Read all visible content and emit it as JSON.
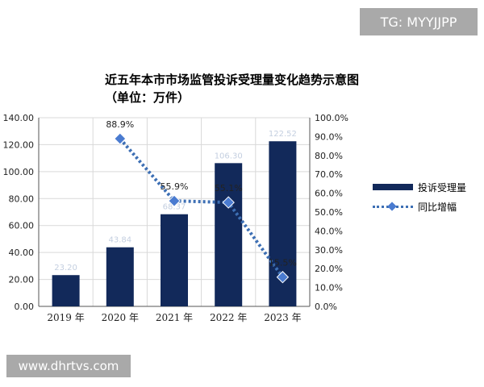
{
  "badge": "TG: MYYJJPP",
  "watermark": "www.dhrtvs.com",
  "chart_data": {
    "type": "bar",
    "title": "近五年本市市场监管投诉受理量变化趋势示意图",
    "subtitle": "（单位：万件）",
    "categories": [
      "2019 年",
      "2020 年",
      "2021 年",
      "2022 年",
      "2023 年"
    ],
    "series": [
      {
        "name": "投诉受理量",
        "type": "bar",
        "axis": "left",
        "values": [
          23.2,
          43.84,
          68.37,
          106.3,
          122.52
        ],
        "labels": [
          "23.20",
          "43.84",
          "68.37",
          "106.30",
          "122.52"
        ],
        "color": "#12295a"
      },
      {
        "name": "同比增幅",
        "type": "line",
        "axis": "right",
        "values": [
          null,
          88.9,
          55.9,
          55.1,
          15.5
        ],
        "labels": [
          "",
          "88.9%",
          "55.9%",
          "55.1%",
          "15.5%"
        ],
        "color": "#3d6fb4"
      }
    ],
    "y_left": {
      "min": 0,
      "max": 140,
      "ticks": [
        "0.00",
        "20.00",
        "40.00",
        "60.00",
        "80.00",
        "100.00",
        "120.00",
        "140.00"
      ]
    },
    "y_right": {
      "min": 0,
      "max": 100,
      "ticks": [
        "0.0%",
        "10.0%",
        "20.0%",
        "30.0%",
        "40.0%",
        "50.0%",
        "60.0%",
        "70.0%",
        "80.0%",
        "90.0%",
        "100.0%"
      ]
    },
    "grid": true,
    "legend": "right"
  }
}
